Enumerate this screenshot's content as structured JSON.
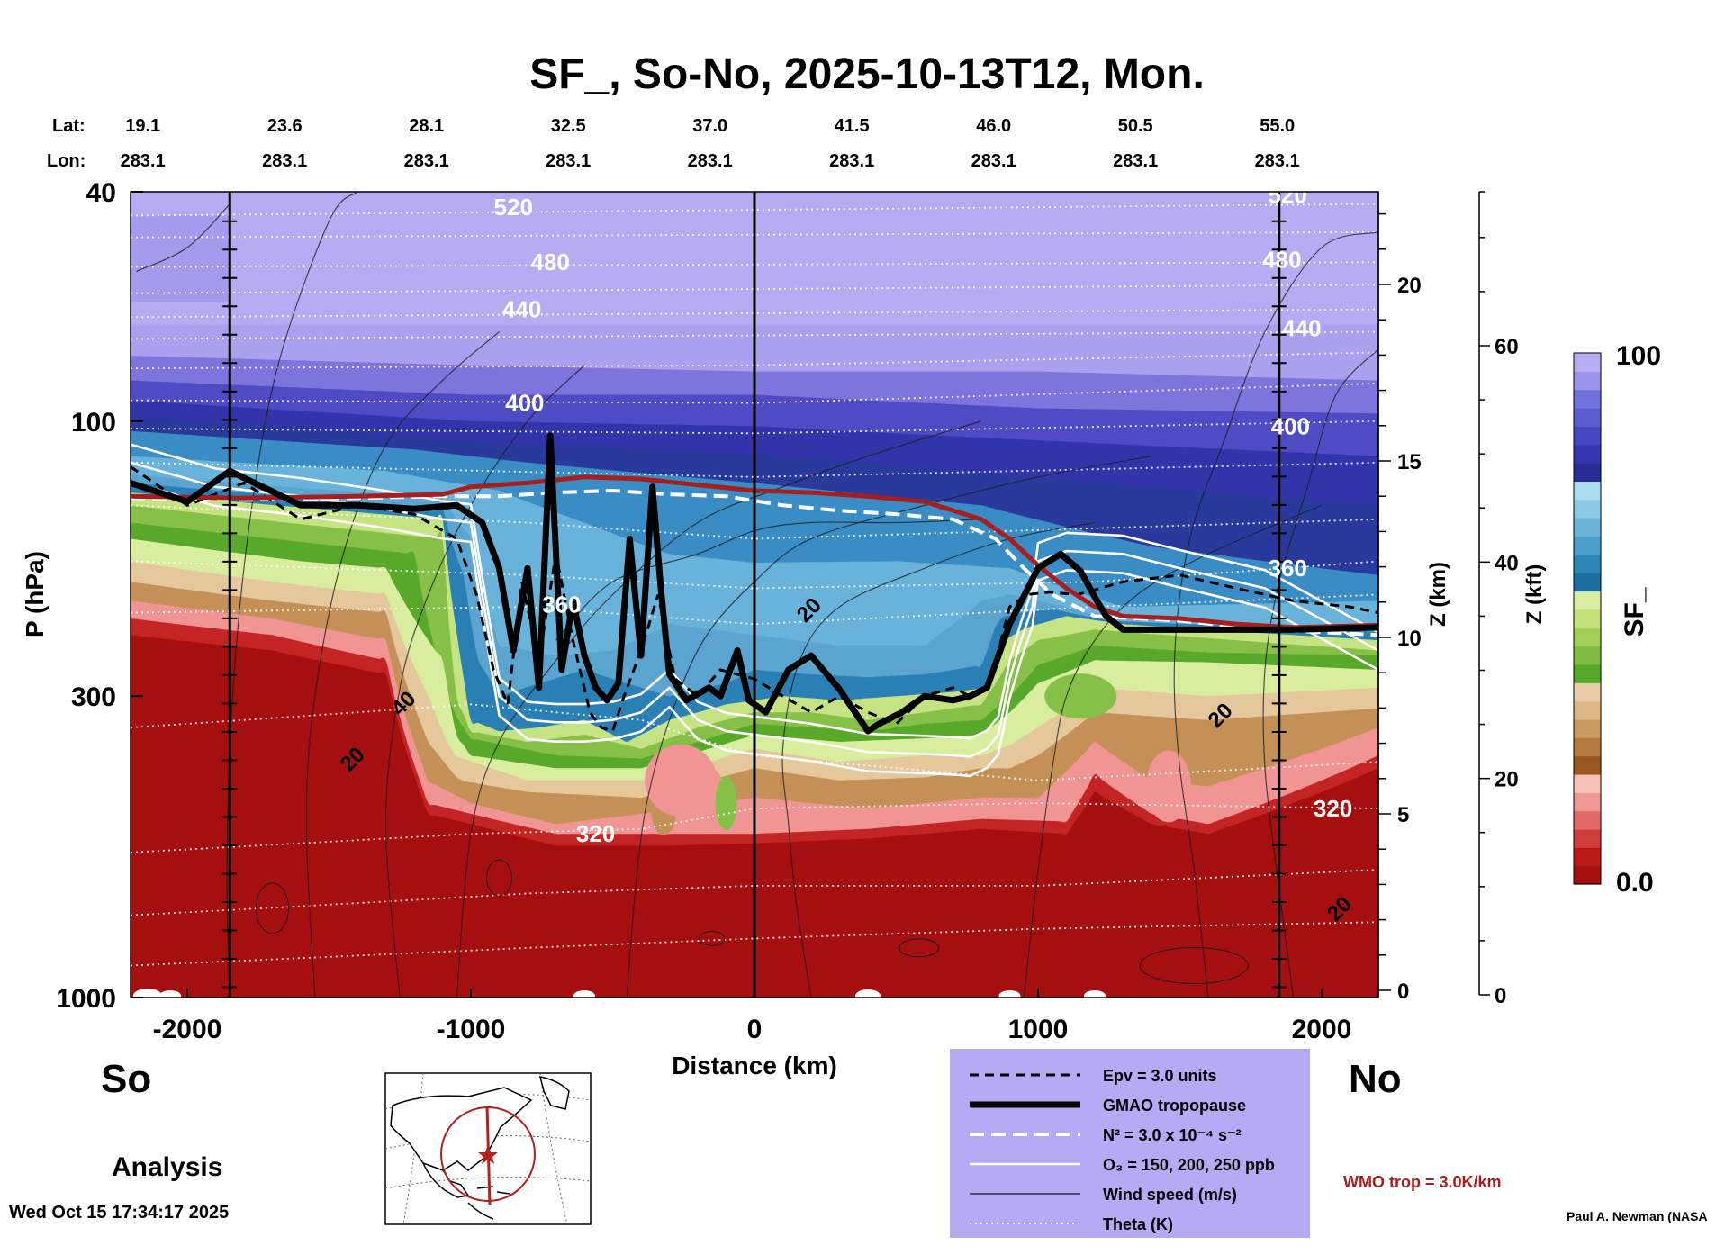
{
  "chart_data": {
    "type": "heatmap",
    "title": "SF_, So-No, 2025-10-13T12, Mon.",
    "xlabel": "Distance (km)",
    "ylabel": "P (hPa)",
    "z_km_label": "Z (km)",
    "z_kft_label": "Z (kft)",
    "xlim": [
      -2200,
      2200
    ],
    "ylim": [
      1000,
      40
    ],
    "x_ticks": [
      "-2000",
      "-1000",
      "0",
      "1000",
      "2000"
    ],
    "x_tick_values": [
      -2000,
      -1000,
      0,
      1000,
      2000
    ],
    "y_ticks": [
      "40",
      "100",
      "300",
      "1000"
    ],
    "y_tick_values": [
      40,
      100,
      300,
      1000
    ],
    "z_km_ticks": [
      "20",
      "15",
      "10",
      "5",
      "0"
    ],
    "z_km_values": [
      20,
      15,
      10,
      5,
      0
    ],
    "z_kft_ticks": [
      "60",
      "40",
      "20",
      "0"
    ],
    "z_kft_values": [
      60,
      40,
      20,
      0
    ],
    "lat_label": "Lat:",
    "lon_label": "Lon:",
    "lats": [
      "19.1",
      "23.6",
      "28.1",
      "32.5",
      "37.0",
      "41.5",
      "46.0",
      "50.5",
      "55.0"
    ],
    "lons": [
      "283.1",
      "283.1",
      "283.1",
      "283.1",
      "283.1",
      "283.1",
      "283.1",
      "283.1",
      "283.1"
    ],
    "station_distances": [
      -2220,
      -1720,
      -1220,
      -720,
      -220,
      280,
      780,
      1280,
      1780
    ],
    "vertical_line_distances": [
      -1850,
      0,
      1850
    ],
    "theta_labels": [
      {
        "text": "520",
        "x": -850,
        "p": 42.5
      },
      {
        "text": "480",
        "x": -720,
        "p": 53
      },
      {
        "text": "440",
        "x": -820,
        "p": 64
      },
      {
        "text": "400",
        "x": -810,
        "p": 93
      },
      {
        "text": "360",
        "x": -680,
        "p": 208
      },
      {
        "text": "320",
        "x": -560,
        "p": 520
      },
      {
        "text": "520",
        "x": 1880,
        "p": 40.5
      },
      {
        "text": "480",
        "x": 1860,
        "p": 52.5
      },
      {
        "text": "440",
        "x": 1930,
        "p": 69
      },
      {
        "text": "400",
        "x": 1890,
        "p": 102
      },
      {
        "text": "360",
        "x": 1880,
        "p": 180
      },
      {
        "text": "320",
        "x": 2040,
        "p": 470
      }
    ],
    "wind_labels": [
      {
        "text": "20",
        "x": 190,
        "p": 212
      },
      {
        "text": "40",
        "x": -1240,
        "p": 308
      },
      {
        "text": "20",
        "x": -1420,
        "p": 385
      },
      {
        "text": "20",
        "x": 1640,
        "p": 323
      },
      {
        "text": "20",
        "x": 2060,
        "p": 700
      }
    ],
    "colorbar": {
      "label": "SF_",
      "max_label": "100",
      "min_label": "0.0",
      "colors": [
        "#a50f0f",
        "#b81818",
        "#d03c3c",
        "#e46a6a",
        "#f09898",
        "#f6c2b8",
        "#9a5620",
        "#b47a42",
        "#c99a62",
        "#ddb888",
        "#eacca6",
        "#56a82a",
        "#80bc42",
        "#a3cf56",
        "#c4e07a",
        "#daeda0",
        "#1c6e9e",
        "#2c86b6",
        "#4c9ecb",
        "#6cb4d8",
        "#8ccae6",
        "#aadcf0",
        "#2b2b96",
        "#3636ae",
        "#4848c0",
        "#5c5cd0",
        "#7272dc",
        "#9a94ea",
        "#b8aef4"
      ]
    },
    "series": [
      {
        "name": "GMAO tropopause",
        "style": "thick-black",
        "x": [
          -2200,
          -2000,
          -1850,
          -1600,
          -1400,
          -1200,
          -1050,
          -960,
          -900,
          -850,
          -800,
          -760,
          -720,
          -680,
          -640,
          -600,
          -560,
          -520,
          -480,
          -440,
          -400,
          -360,
          -330,
          -300,
          -240,
          -160,
          -120,
          -60,
          -20,
          40,
          120,
          200,
          300,
          400,
          440,
          520,
          600,
          700,
          760,
          820,
          900,
          1000,
          1080,
          1150,
          1200,
          1240,
          1300,
          1500,
          1700,
          1900,
          2200
        ],
        "p": [
          128,
          138,
          122,
          140,
          140,
          142,
          140,
          150,
          180,
          250,
          180,
          290,
          106,
          270,
          205,
          255,
          290,
          305,
          285,
          160,
          255,
          130,
          195,
          275,
          305,
          290,
          300,
          250,
          305,
          320,
          270,
          255,
          292,
          345,
          335,
          320,
          300,
          305,
          300,
          290,
          225,
          180,
          170,
          182,
          202,
          218,
          230,
          230,
          230,
          230,
          228
        ]
      },
      {
        "name": "WMO trop",
        "style": "red",
        "x": [
          -2200,
          -1800,
          -1400,
          -1100,
          -1000,
          -800,
          -600,
          -400,
          -200,
          0,
          200,
          400,
          600,
          800,
          900,
          1000,
          1100,
          1200,
          1300,
          1500,
          1700,
          1900,
          2200
        ],
        "p": [
          135,
          136,
          135,
          134,
          130,
          128,
          125,
          126,
          129,
          132,
          133,
          135,
          138,
          148,
          160,
          178,
          195,
          210,
          218,
          220,
          225,
          228,
          226
        ]
      },
      {
        "name": "Epv = 3.0 units",
        "style": "dashed-black",
        "x": [
          -2200,
          -2000,
          -1800,
          -1600,
          -1400,
          -1200,
          -1050,
          -980,
          -920,
          -870,
          -820,
          -760,
          -700,
          -640,
          -580,
          -540,
          -500,
          -460,
          -400,
          -340,
          -280,
          -200,
          -120,
          0,
          100,
          200,
          300,
          400,
          500,
          600,
          700,
          760,
          820,
          860,
          900,
          960,
          1040,
          1140,
          1300,
          1500,
          1700,
          1900,
          2100,
          2200
        ],
        "p": [
          120,
          140,
          128,
          148,
          140,
          145,
          160,
          200,
          270,
          310,
          190,
          260,
          170,
          240,
          320,
          340,
          345,
          300,
          250,
          200,
          280,
          300,
          270,
          280,
          300,
          320,
          300,
          320,
          335,
          300,
          290,
          300,
          290,
          250,
          210,
          200,
          198,
          200,
          190,
          185,
          195,
          205,
          210,
          215
        ]
      },
      {
        "name": "N² = 3.0 x 10⁻⁴ s⁻²",
        "style": "dashed-white",
        "x": [
          -2200,
          -1800,
          -1400,
          -1100,
          -900,
          -700,
          -500,
          -300,
          -100,
          100,
          300,
          500,
          700,
          850,
          950,
          1050,
          1200,
          1500,
          1800,
          2200
        ],
        "p": [
          136,
          137,
          136,
          135,
          135,
          133,
          132,
          134,
          135,
          140,
          143,
          145,
          148,
          160,
          180,
          200,
          218,
          222,
          230,
          235
        ]
      },
      {
        "name": "O₃ = 150, 200, 250 ppb",
        "style": "white",
        "x": [
          -2200,
          -1900,
          -1600,
          -1300,
          -1100,
          -1000,
          -960,
          -900,
          -800,
          -700,
          -600,
          -500,
          -400,
          -300,
          -200,
          -100,
          0,
          200,
          400,
          600,
          700,
          760,
          820,
          860,
          900,
          940,
          980,
          1000,
          1100,
          1300,
          1500,
          1800,
          2200
        ],
        "p": [
          118,
          130,
          135,
          142,
          148,
          150,
          200,
          300,
          330,
          333,
          333,
          330,
          320,
          290,
          330,
          345,
          350,
          360,
          375,
          378,
          380,
          382,
          370,
          350,
          280,
          240,
          210,
          175,
          168,
          170,
          180,
          195,
          250
        ]
      }
    ]
  },
  "labels": {
    "south": "So",
    "north": "No",
    "analysis": "Analysis",
    "timestamp": "Wed Oct 15 17:34:17 2025",
    "credit": "Paul A. Newman (NASA",
    "wmo_note": "WMO trop = 3.0K/km"
  },
  "legend": [
    {
      "style": "dashed-black",
      "text": "Epv = 3.0 units"
    },
    {
      "style": "thick-black",
      "text": "GMAO tropopause"
    },
    {
      "style": "dashed-white",
      "text": "N² = 3.0 x 10⁻⁴ s⁻²"
    },
    {
      "style": "white",
      "text": "O₃ = 150, 200, 250 ppb"
    },
    {
      "style": "thin-black",
      "text": "Wind speed (m/s)"
    },
    {
      "style": "dotted-white",
      "text": "Theta (K)"
    }
  ],
  "colors": {
    "legend_bg": "#b7aaf4",
    "wmo": "#a81e1e",
    "map_circle": "#b22222"
  }
}
